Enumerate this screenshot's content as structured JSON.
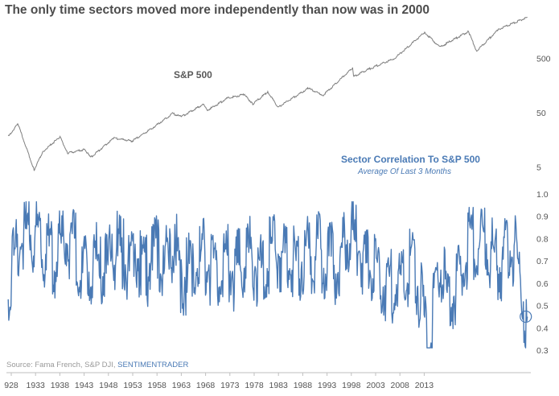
{
  "title": "The only time sectors moved more independently than now was in 2000",
  "source": {
    "prefix": "Source: Fama French, S&P DJI,",
    "brand": "SENTIMENTRADER"
  },
  "colors": {
    "sp500_line": "#7f7f7f",
    "correlation_line": "#4a7ab5",
    "axis": "#bfbfbf",
    "text": "#4d4d4d"
  },
  "chart_data": [
    {
      "type": "line",
      "series": [
        {
          "name": "S&P 500",
          "x": [
            1928,
            1929.7,
            1932.5,
            1934,
            1937,
            1938.3,
            1941.3,
            1942.3,
            1946.3,
            1949.5,
            1953,
            1956.5,
            1958,
            1961.9,
            1962.5,
            1966,
            1968.9,
            1970.4,
            1973,
            1974.8,
            1980,
            1982.6,
            1987.7,
            1987.9,
            1990,
            1995,
            2000.2,
            2002.8,
            2007.8,
            2009.2,
            2013,
            2018
          ],
          "y": [
            18,
            31,
            4.4,
            9.5,
            18,
            9,
            10.5,
            7.5,
            17,
            15,
            26,
            48,
            42,
            72,
            55,
            92,
            108,
            72,
            120,
            63,
            140,
            105,
            330,
            230,
            300,
            500,
            1500,
            800,
            1560,
            680,
            1700,
            2850
          ]
        }
      ],
      "yticks": [
        5,
        50,
        500
      ],
      "ylabel": "",
      "scale": "log"
    },
    {
      "type": "line",
      "series": [
        {
          "name": "Sector Correlation To S&P 500",
          "subtitle": "Average Of Last 3 Months",
          "x": [
            1928,
            1929,
            1930,
            1931,
            1932,
            1933,
            1934,
            1935,
            1936,
            1937,
            1938,
            1939,
            1940,
            1941,
            1942,
            1943,
            1944,
            1945,
            1946,
            1947,
            1948,
            1949,
            1950,
            1951,
            1952,
            1953,
            1954,
            1955,
            1956,
            1957,
            1958,
            1959,
            1960,
            1961,
            1962,
            1963,
            1964,
            1965,
            1966,
            1967,
            1968,
            1969,
            1970,
            1971,
            1972,
            1973,
            1974,
            1975,
            1976,
            1977,
            1978,
            1979,
            1980,
            1981,
            1982,
            1983,
            1984,
            1985,
            1986,
            1987,
            1988,
            1989,
            1990,
            1991,
            1992,
            1993,
            1994,
            1995,
            1996,
            1997,
            1998,
            1999,
            2000,
            2001,
            2002,
            2003,
            2004,
            2005,
            2006,
            2007,
            2008,
            2009,
            2010,
            2011,
            2012,
            2013,
            2014,
            2015,
            2016,
            2017,
            2018
          ],
          "y": [
            0.68,
            0.8,
            0.9,
            0.93,
            0.92,
            0.88,
            0.85,
            0.83,
            0.78,
            0.86,
            0.88,
            0.86,
            0.82,
            0.72,
            0.75,
            0.8,
            0.76,
            0.74,
            0.82,
            0.84,
            0.8,
            0.75,
            0.81,
            0.8,
            0.74,
            0.84,
            0.82,
            0.77,
            0.78,
            0.85,
            0.7,
            0.73,
            0.78,
            0.76,
            0.83,
            0.76,
            0.7,
            0.74,
            0.8,
            0.74,
            0.76,
            0.8,
            0.84,
            0.76,
            0.74,
            0.8,
            0.86,
            0.82,
            0.8,
            0.76,
            0.78,
            0.8,
            0.82,
            0.8,
            0.85,
            0.78,
            0.8,
            0.76,
            0.82,
            0.9,
            0.88,
            0.84,
            0.78,
            0.74,
            0.72,
            0.7,
            0.66,
            0.7,
            0.68,
            0.74,
            0.8,
            0.7,
            0.56,
            0.34,
            0.66,
            0.76,
            0.62,
            0.66,
            0.7,
            0.74,
            0.88,
            0.84,
            0.86,
            0.88,
            0.8,
            0.78,
            0.8,
            0.84,
            0.82,
            0.7,
            0.45
          ]
        }
      ],
      "yticks": [
        0.3,
        0.4,
        0.5,
        0.6,
        0.7,
        0.8,
        0.9,
        1.0
      ],
      "ylim": [
        0.25,
        1.0
      ],
      "xticks": [
        "928",
        "1933",
        "1938",
        "1943",
        "1948",
        "1953",
        "1958",
        "1963",
        "1968",
        "1973",
        "1978",
        "1983",
        "1988",
        "1993",
        "1998",
        "2003",
        "2008",
        "2013"
      ],
      "highlight": {
        "x": 2018,
        "y": 0.45
      }
    }
  ],
  "labels": {
    "sp500": "S&P 500",
    "corr_title": "Sector Correlation To S&P 500",
    "corr_sub": "Average Of Last 3 Months"
  }
}
